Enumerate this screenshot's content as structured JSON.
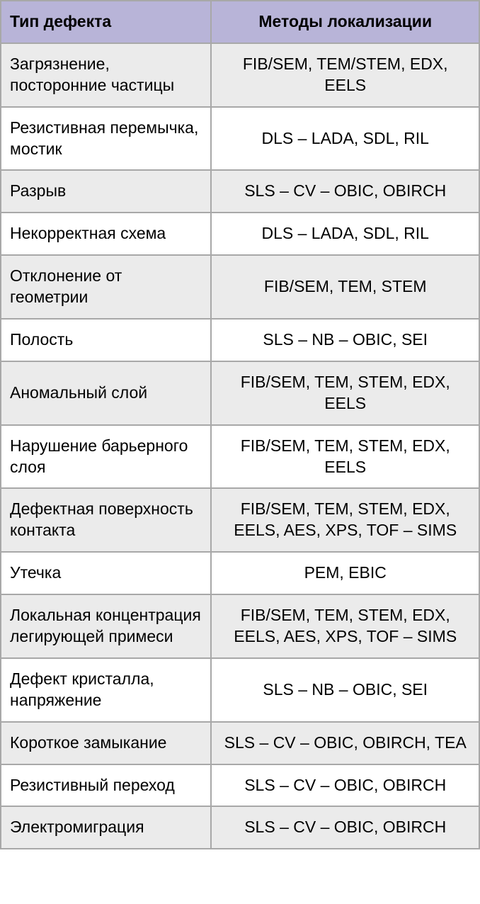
{
  "table": {
    "header_background": "#b8b4d8",
    "border_color": "#a8a8a8",
    "row_grey_color": "#ebebeb",
    "row_white_color": "#ffffff",
    "font_size": 23,
    "columns": [
      {
        "label": "Тип дефекта",
        "align": "left"
      },
      {
        "label": "Методы локализации",
        "align": "center"
      }
    ],
    "rows": [
      {
        "defect": "Загрязнение, посторонние частицы",
        "method": "FIB/SEM, TEM/STEM, EDX, EELS",
        "shade": "grey"
      },
      {
        "defect": "Резистивная перемычка, мостик",
        "method": "DLS – LADA, SDL, RIL",
        "shade": "white"
      },
      {
        "defect": "Разрыв",
        "method": "SLS – CV – OBIC, OBIRCH",
        "shade": "grey"
      },
      {
        "defect": "Некорректная схема",
        "method": "DLS – LADA, SDL, RIL",
        "shade": "white"
      },
      {
        "defect": "Отклонение от геометрии",
        "method": "FIB/SEM, TEM, STEM",
        "shade": "grey"
      },
      {
        "defect": "Полость",
        "method": "SLS – NB – OBIC, SEI",
        "shade": "white"
      },
      {
        "defect": "Аномальный слой",
        "method": "FIB/SEM, TEM, STEM, EDX, EELS",
        "shade": "grey"
      },
      {
        "defect": "Нарушение барьерного слоя",
        "method": "FIB/SEM, TEM, STEM, EDX, EELS",
        "shade": "white"
      },
      {
        "defect": "Дефектная поверхность контакта",
        "method": "FIB/SEM, TEM, STEM, EDX, EELS, AES, XPS, TOF – SIMS",
        "shade": "grey"
      },
      {
        "defect": "Утечка",
        "method": "PEM, EBIC",
        "shade": "white"
      },
      {
        "defect": "Локальная концентрация легирующей примеси",
        "method": "FIB/SEM, TEM, STEM, EDX, EELS, AES, XPS, TOF – SIMS",
        "shade": "grey"
      },
      {
        "defect": "Дефект кристалла, напряжение",
        "method": "SLS – NB – OBIC, SEI",
        "shade": "white"
      },
      {
        "defect": "Короткое замыкание",
        "method": "SLS – CV – OBIC, OBIRCH, TEA",
        "shade": "grey"
      },
      {
        "defect": "Резистивный переход",
        "method": "SLS – CV – OBIC, OBIRCH",
        "shade": "white"
      },
      {
        "defect": "Электромиграция",
        "method": "SLS – CV – OBIC, OBIRCH",
        "shade": "grey"
      }
    ]
  }
}
